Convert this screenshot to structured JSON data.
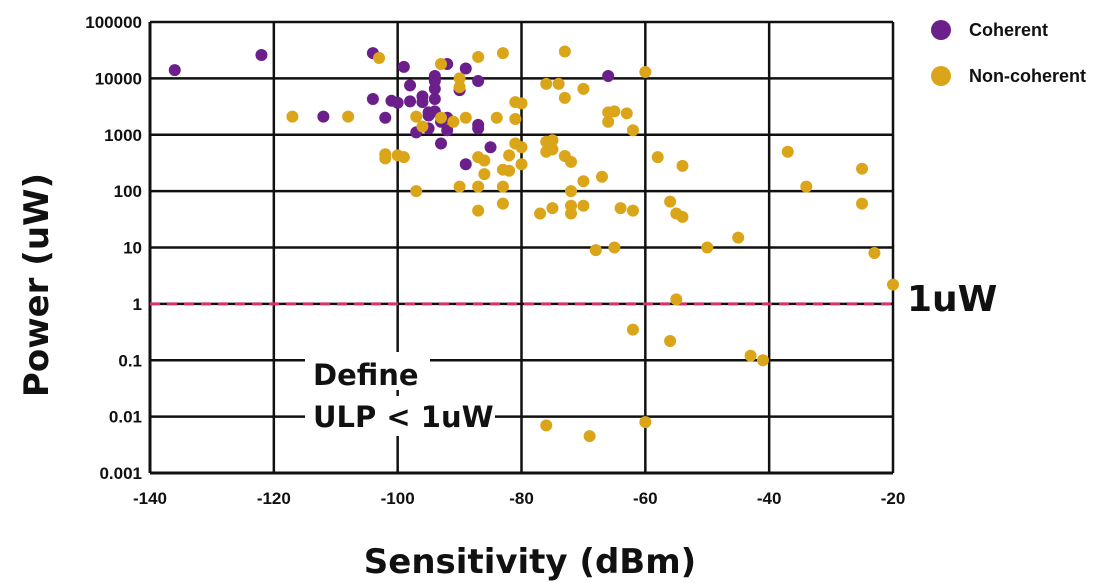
{
  "chart_data": {
    "type": "scatter",
    "xlabel": "Sensitivity (dBm)",
    "ylabel": "Power (uW)",
    "xlim": [
      -140,
      -20
    ],
    "ylim": [
      0.001,
      100000
    ],
    "yscale": "log",
    "x_ticks": [
      "-140",
      "-120",
      "-100",
      "-80",
      "-60",
      "-40",
      "-20"
    ],
    "y_ticks": [
      "0.001",
      "0.01",
      "0.1",
      "1",
      "10",
      "100",
      "1000",
      "10000",
      "100000"
    ],
    "grid": true,
    "legend_position": "right",
    "threshold": {
      "y": 1,
      "label": "1uW",
      "color": "#d6336c"
    },
    "annotation": {
      "line1": "Define",
      "line2": "ULP < 1uW"
    },
    "series": [
      {
        "name": "Coherent",
        "color": "#6a1f8a",
        "points": [
          [
            -136,
            14000
          ],
          [
            -122,
            26000
          ],
          [
            -112,
            2100
          ],
          [
            -104,
            28000
          ],
          [
            -104,
            4300
          ],
          [
            -102,
            2000
          ],
          [
            -101,
            4000
          ],
          [
            -100,
            3700
          ],
          [
            -99,
            16000
          ],
          [
            -98,
            7500
          ],
          [
            -98,
            3900
          ],
          [
            -97,
            1100
          ],
          [
            -96,
            4800
          ],
          [
            -96,
            3800
          ],
          [
            -95,
            2500
          ],
          [
            -95,
            2200
          ],
          [
            -95,
            1300
          ],
          [
            -94,
            11000
          ],
          [
            -94,
            9000
          ],
          [
            -94,
            6500
          ],
          [
            -94,
            4300
          ],
          [
            -94,
            2600
          ],
          [
            -93,
            1700
          ],
          [
            -93,
            700
          ],
          [
            -92,
            18000
          ],
          [
            -92,
            2000
          ],
          [
            -92,
            1200
          ],
          [
            -90,
            6200
          ],
          [
            -89,
            15000
          ],
          [
            -89,
            300
          ],
          [
            -87,
            9000
          ],
          [
            -87,
            1500
          ],
          [
            -87,
            1300
          ],
          [
            -85,
            600
          ],
          [
            -66,
            11000
          ]
        ]
      },
      {
        "name": "Non-coherent",
        "color": "#dba51a",
        "points": [
          [
            -117,
            2100
          ],
          [
            -108,
            2100
          ],
          [
            -103,
            23000
          ],
          [
            -102,
            450
          ],
          [
            -102,
            380
          ],
          [
            -100,
            430
          ],
          [
            -99,
            400
          ],
          [
            -97,
            100
          ],
          [
            -97,
            2100
          ],
          [
            -96,
            1400
          ],
          [
            -93,
            18000
          ],
          [
            -93,
            2000
          ],
          [
            -91,
            1700
          ],
          [
            -90,
            10000
          ],
          [
            -90,
            7000
          ],
          [
            -90,
            120
          ],
          [
            -89,
            2000
          ],
          [
            -87,
            24000
          ],
          [
            -87,
            400
          ],
          [
            -87,
            120
          ],
          [
            -87,
            45
          ],
          [
            -86,
            350
          ],
          [
            -86,
            200
          ],
          [
            -84,
            2000
          ],
          [
            -83,
            28000
          ],
          [
            -83,
            240
          ],
          [
            -83,
            120
          ],
          [
            -83,
            60
          ],
          [
            -82,
            430
          ],
          [
            -82,
            230
          ],
          [
            -81,
            3800
          ],
          [
            -81,
            1900
          ],
          [
            -81,
            700
          ],
          [
            -80,
            3600
          ],
          [
            -80,
            600
          ],
          [
            -80,
            300
          ],
          [
            -77,
            40
          ],
          [
            -76,
            8000
          ],
          [
            -76,
            750
          ],
          [
            -76,
            500
          ],
          [
            -75,
            800
          ],
          [
            -75,
            550
          ],
          [
            -75,
            50
          ],
          [
            -74,
            8000
          ],
          [
            -73,
            30000
          ],
          [
            -73,
            4500
          ],
          [
            -73,
            420
          ],
          [
            -72,
            330
          ],
          [
            -72,
            100
          ],
          [
            -72,
            55
          ],
          [
            -72,
            40
          ],
          [
            -70,
            6500
          ],
          [
            -70,
            150
          ],
          [
            -70,
            55
          ],
          [
            -68,
            9
          ],
          [
            -67,
            180
          ],
          [
            -66,
            2500
          ],
          [
            -66,
            1700
          ],
          [
            -65,
            2600
          ],
          [
            -65,
            10
          ],
          [
            -64,
            50
          ],
          [
            -63,
            2400
          ],
          [
            -62,
            1200
          ],
          [
            -62,
            45
          ],
          [
            -62,
            0.35
          ],
          [
            -60,
            13000
          ],
          [
            -58,
            400
          ],
          [
            -56,
            65
          ],
          [
            -56,
            0.22
          ],
          [
            -55,
            40
          ],
          [
            -55,
            1.2
          ],
          [
            -54,
            35
          ],
          [
            -54,
            280
          ],
          [
            -50,
            10
          ],
          [
            -45,
            15
          ],
          [
            -43,
            0.12
          ],
          [
            -41,
            0.1
          ],
          [
            -37,
            500
          ],
          [
            -34,
            120
          ],
          [
            -25,
            250
          ],
          [
            -25,
            60
          ],
          [
            -23,
            8
          ],
          [
            -20,
            2.2
          ],
          [
            -76,
            0.007
          ],
          [
            -69,
            0.0045
          ],
          [
            -60,
            0.008
          ]
        ]
      }
    ]
  }
}
